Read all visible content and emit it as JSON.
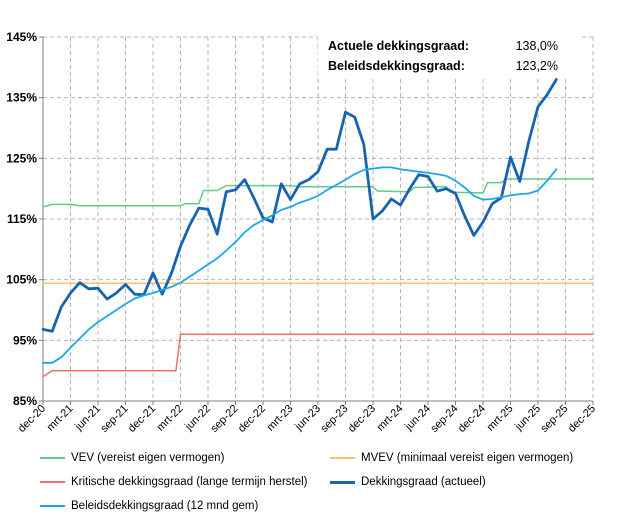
{
  "chart_data": {
    "type": "line",
    "x_ticks": [
      "dec-20",
      "mrt-21",
      "jun-21",
      "sep-21",
      "dec-21",
      "mrt-22",
      "jun-22",
      "sep-22",
      "dec-22",
      "mrt-23",
      "jun-23",
      "sep-23",
      "dec-23",
      "mrt-24",
      "jun-24",
      "sep-24",
      "dec-24",
      "mrt-25",
      "jun-25",
      "sep-25",
      "dec-25"
    ],
    "x_range_months": [
      0,
      60
    ],
    "ylim": [
      85,
      145
    ],
    "y_ticks": [
      85,
      95,
      105,
      115,
      125,
      135,
      145
    ],
    "y_tick_labels": [
      "85%",
      "95%",
      "105%",
      "115%",
      "125%",
      "135%",
      "145%"
    ],
    "grid": "dashed",
    "annotations": [
      {
        "label": "Actuele dekkingsgraad:",
        "value": "138,0%"
      },
      {
        "label": "Beleidsdekkingsgraad:",
        "value": "123,2%"
      }
    ],
    "series": [
      {
        "name": "VEV (vereist eigen vermogen)",
        "color": "#66c98a",
        "width": 1.5,
        "points": [
          [
            0,
            117
          ],
          [
            1,
            117.4
          ],
          [
            3,
            117.4
          ],
          [
            4,
            117.2
          ],
          [
            15,
            117.2
          ],
          [
            15.5,
            117.5
          ],
          [
            17,
            117.5
          ],
          [
            17.5,
            119.7
          ],
          [
            19,
            119.7
          ],
          [
            20,
            120.5
          ],
          [
            27,
            120.5
          ],
          [
            28,
            120.3
          ],
          [
            36,
            120.3
          ],
          [
            36.5,
            119.6
          ],
          [
            40,
            119.5
          ],
          [
            40.5,
            120.2
          ],
          [
            44,
            120.3
          ],
          [
            44.5,
            119.4
          ],
          [
            48,
            119.3
          ],
          [
            48.5,
            121
          ],
          [
            50,
            121
          ],
          [
            50.5,
            121.6
          ],
          [
            60,
            121.6
          ]
        ]
      },
      {
        "name": "MVEV (minimaal vereist eigen vermogen)",
        "color": "#ffc066",
        "width": 1.5,
        "points": [
          [
            0,
            104.4
          ],
          [
            60,
            104.4
          ]
        ]
      },
      {
        "name": "Kritische dekkingsgraad (lange termijn herstel)",
        "color": "#f07070",
        "width": 1.5,
        "points": [
          [
            0,
            89
          ],
          [
            1,
            90
          ],
          [
            14.5,
            90
          ],
          [
            15,
            96
          ],
          [
            60,
            96
          ]
        ]
      },
      {
        "name": "Dekkingsgraad (actueel)",
        "color": "#1765b0",
        "width": 2.8,
        "points": [
          [
            0,
            96.8
          ],
          [
            1,
            96.5
          ],
          [
            2,
            100.5
          ],
          [
            3,
            102.8
          ],
          [
            4,
            104.5
          ],
          [
            5,
            103.5
          ],
          [
            6,
            103.6
          ],
          [
            7,
            101.8
          ],
          [
            8,
            102.8
          ],
          [
            9,
            104.2
          ],
          [
            10,
            102.6
          ],
          [
            11,
            102.5
          ],
          [
            12,
            106.1
          ],
          [
            13,
            102.6
          ],
          [
            14,
            106
          ],
          [
            15,
            110.5
          ],
          [
            16,
            114
          ],
          [
            17,
            116.8
          ],
          [
            18,
            116.6
          ],
          [
            19,
            112.5
          ],
          [
            20,
            119.5
          ],
          [
            21,
            119.8
          ],
          [
            22,
            121.5
          ],
          [
            23,
            118.5
          ],
          [
            24,
            115.2
          ],
          [
            25,
            114.5
          ],
          [
            26,
            120.8
          ],
          [
            27,
            118.2
          ],
          [
            28,
            120.8
          ],
          [
            29,
            121.5
          ],
          [
            30,
            122.8
          ],
          [
            31,
            126.5
          ],
          [
            32,
            126.5
          ],
          [
            33,
            132.6
          ],
          [
            34,
            131.8
          ],
          [
            35,
            127.3
          ],
          [
            36,
            115
          ],
          [
            37,
            116.3
          ],
          [
            38,
            118.3
          ],
          [
            39,
            117.3
          ],
          [
            40,
            120
          ],
          [
            41,
            122.3
          ],
          [
            42,
            122
          ],
          [
            43,
            119.6
          ],
          [
            44,
            120
          ],
          [
            45,
            119.2
          ],
          [
            46,
            115.5
          ],
          [
            47,
            112.3
          ],
          [
            48,
            114.5
          ],
          [
            49,
            117.5
          ],
          [
            50,
            118.5
          ],
          [
            51,
            125.2
          ],
          [
            52,
            121.2
          ],
          [
            53,
            127.8
          ],
          [
            54,
            133.5
          ],
          [
            55,
            135.5
          ],
          [
            56,
            138
          ]
        ]
      },
      {
        "name": "Beleidsdekkingsgraad (12 mnd gem)",
        "color": "#1ea7e8",
        "width": 1.8,
        "points": [
          [
            0,
            91.3
          ],
          [
            1,
            91.3
          ],
          [
            2,
            92.2
          ],
          [
            3,
            93.8
          ],
          [
            4,
            95.3
          ],
          [
            5,
            96.8
          ],
          [
            6,
            98
          ],
          [
            7,
            99
          ],
          [
            8,
            100
          ],
          [
            9,
            101
          ],
          [
            10,
            101.9
          ],
          [
            11,
            102.4
          ],
          [
            12,
            102.8
          ],
          [
            13,
            103.3
          ],
          [
            14,
            103.8
          ],
          [
            15,
            104.5
          ],
          [
            16,
            105.5
          ],
          [
            17,
            106.5
          ],
          [
            18,
            107.5
          ],
          [
            19,
            108.5
          ],
          [
            20,
            109.8
          ],
          [
            21,
            111.2
          ],
          [
            22,
            112.8
          ],
          [
            23,
            114
          ],
          [
            24,
            114.8
          ],
          [
            25,
            115.6
          ],
          [
            26,
            116.5
          ],
          [
            27,
            117
          ],
          [
            28,
            117.7
          ],
          [
            29,
            118.2
          ],
          [
            30,
            118.8
          ],
          [
            31,
            119.8
          ],
          [
            32,
            120.6
          ],
          [
            33,
            121.5
          ],
          [
            34,
            122.4
          ],
          [
            35,
            123.1
          ],
          [
            36,
            123.3
          ],
          [
            37,
            123.5
          ],
          [
            38,
            123.5
          ],
          [
            39,
            123.2
          ],
          [
            40,
            123
          ],
          [
            41,
            122.8
          ],
          [
            42,
            122.6
          ],
          [
            43,
            122.4
          ],
          [
            44,
            122.1
          ],
          [
            45,
            121.3
          ],
          [
            46,
            120.2
          ],
          [
            47,
            118.8
          ],
          [
            48,
            118.2
          ],
          [
            49,
            118.3
          ],
          [
            50,
            118.6
          ],
          [
            51,
            118.9
          ],
          [
            52,
            119.1
          ],
          [
            53,
            119.2
          ],
          [
            54,
            119.7
          ],
          [
            55,
            121.3
          ],
          [
            56,
            123.2
          ]
        ]
      }
    ],
    "legend": [
      {
        "label": "VEV (vereist eigen vermogen)",
        "color": "#66c98a",
        "width": 2
      },
      {
        "label": "MVEV (minimaal vereist eigen vermogen)",
        "color": "#ffc066",
        "width": 2
      },
      {
        "label": "Kritische dekkingsgraad (lange termijn herstel)",
        "color": "#f07070",
        "width": 2
      },
      {
        "label": "Dekkingsgraad (actueel)",
        "color": "#1765b0",
        "width": 3
      },
      {
        "label": "Beleidsdekkingsgraad (12 mnd gem)",
        "color": "#1ea7e8",
        "width": 2
      }
    ]
  }
}
